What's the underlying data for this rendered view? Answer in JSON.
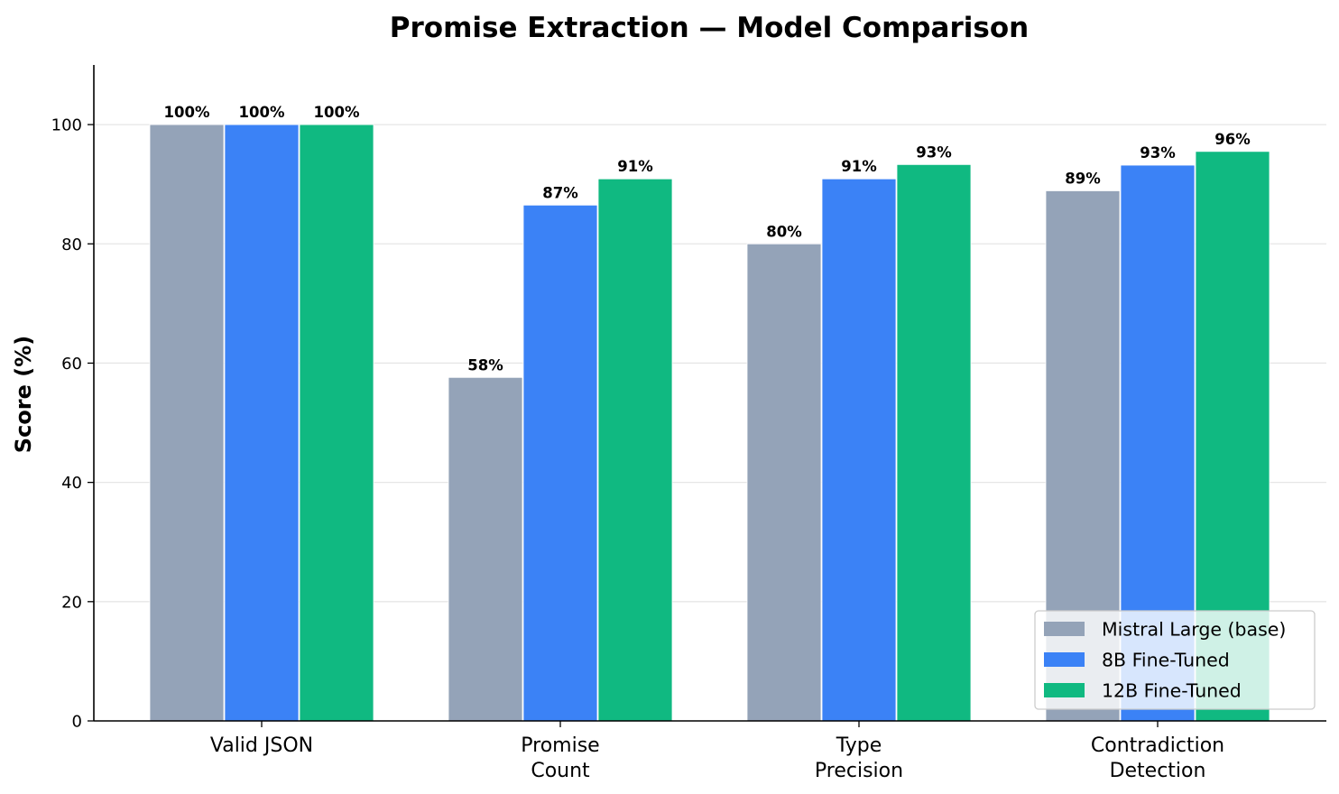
{
  "chart_data": {
    "type": "bar",
    "title": "Promise Extraction — Model Comparison",
    "xlabel": "",
    "ylabel": "Score (%)",
    "ylim": [
      0,
      110
    ],
    "yticks": [
      0,
      20,
      40,
      60,
      80,
      100
    ],
    "grid": "horizontal",
    "legend_position": "lower-right",
    "categories": [
      [
        "Valid JSON"
      ],
      [
        "Promise",
        "Count"
      ],
      [
        "Type",
        "Precision"
      ],
      [
        "Contradiction",
        "Detection"
      ]
    ],
    "series": [
      {
        "name": "Mistral Large (base)",
        "color": "#94a3b8",
        "values": [
          100,
          57.6,
          80,
          88.9
        ],
        "labels": [
          "100%",
          "58%",
          "80%",
          "89%"
        ]
      },
      {
        "name": "8B Fine-Tuned",
        "color": "#3b82f6",
        "values": [
          100,
          86.5,
          90.9,
          93.2
        ],
        "labels": [
          "100%",
          "87%",
          "91%",
          "93%"
        ]
      },
      {
        "name": "12B Fine-Tuned",
        "color": "#10b981",
        "values": [
          100,
          90.9,
          93.3,
          95.5
        ],
        "labels": [
          "100%",
          "91%",
          "93%",
          "96%"
        ]
      }
    ]
  }
}
